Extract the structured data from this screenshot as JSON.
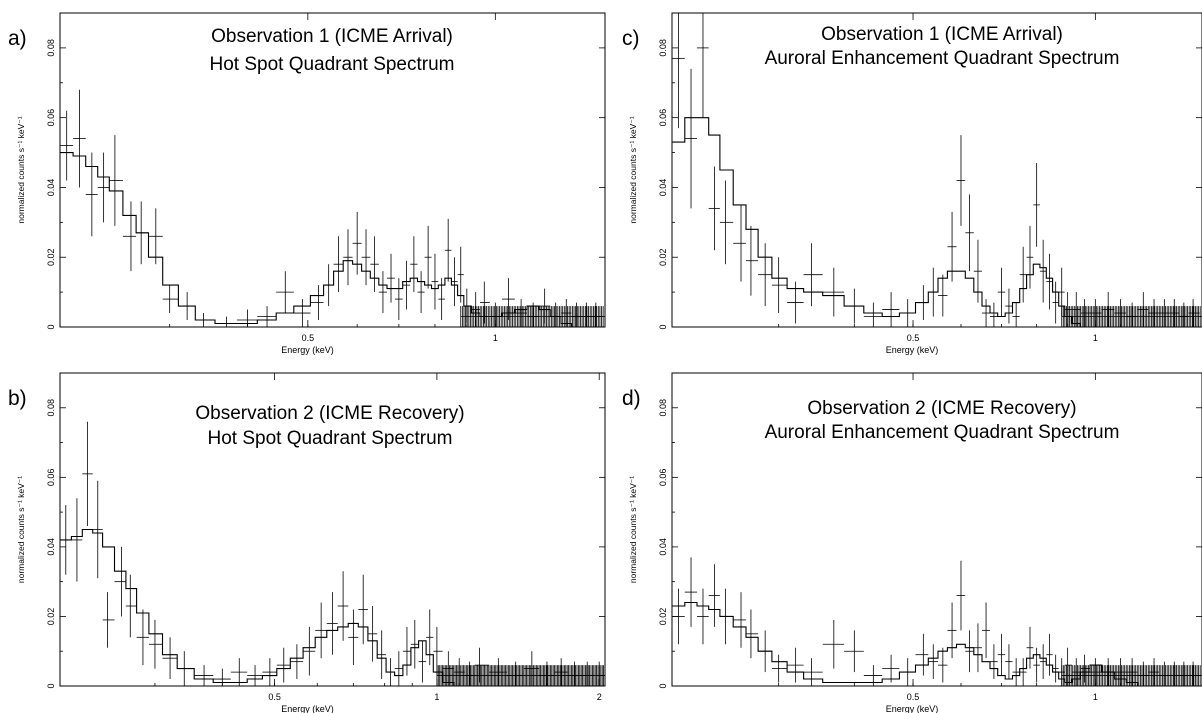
{
  "chart_data": [
    {
      "panel_label": "a)",
      "type": "line",
      "title": "Observation 1 (ICME Arrival)",
      "subtitle": "Hot Spot Quadrant Spectrum",
      "xlabel": "Energy (keV)",
      "ylabel": "normalized counts s⁻¹ keV⁻¹",
      "x_scale": "log",
      "xlim": [
        0.2,
        1.5
      ],
      "ylim": [
        0,
        0.09
      ],
      "x_ticks": [
        {
          "value": 0.5,
          "label": "0.5"
        },
        {
          "value": 1,
          "label": "1"
        }
      ],
      "y_ticks": [
        {
          "value": 0,
          "label": "0"
        },
        {
          "value": 0.02,
          "label": "0.02"
        },
        {
          "value": 0.04,
          "label": "0.04"
        },
        {
          "value": 0.06,
          "label": "0.06"
        },
        {
          "value": 0.08,
          "label": "0.08"
        }
      ],
      "data": {
        "x": [
          0.205,
          0.215,
          0.225,
          0.235,
          0.245,
          0.26,
          0.27,
          0.285,
          0.3,
          0.32,
          0.34,
          0.37,
          0.4,
          0.43,
          0.46,
          0.49,
          0.52,
          0.54,
          0.56,
          0.58,
          0.6,
          0.62,
          0.64,
          0.66,
          0.68,
          0.7,
          0.72,
          0.74,
          0.76,
          0.78,
          0.8,
          0.82,
          0.84,
          0.86,
          0.88,
          0.9,
          0.93,
          0.96,
          1.0,
          1.05,
          1.1,
          1.15,
          1.2,
          1.25,
          1.3,
          1.35,
          1.4,
          1.45
        ],
        "y": [
          0.052,
          0.054,
          0.038,
          0.04,
          0.042,
          0.026,
          0.027,
          0.026,
          0.008,
          0.006,
          0.002,
          0.001,
          0.002,
          0.003,
          0.01,
          0.004,
          0.007,
          0.012,
          0.018,
          0.02,
          0.024,
          0.02,
          0.018,
          0.01,
          0.014,
          0.008,
          0.012,
          0.018,
          0.01,
          0.02,
          0.013,
          0.008,
          0.022,
          0.013,
          0.015,
          0.006,
          0.005,
          0.007,
          0.003,
          0.008,
          0.004,
          0.003,
          0.006,
          0.003,
          0.004,
          0.003,
          0.003,
          0.003
        ],
        "yerr": [
          0.01,
          0.014,
          0.012,
          0.01,
          0.013,
          0.01,
          0.009,
          0.008,
          0.004,
          0.004,
          0.002,
          0.002,
          0.003,
          0.003,
          0.006,
          0.004,
          0.005,
          0.006,
          0.008,
          0.008,
          0.009,
          0.008,
          0.008,
          0.006,
          0.007,
          0.006,
          0.007,
          0.008,
          0.006,
          0.009,
          0.008,
          0.006,
          0.009,
          0.007,
          0.008,
          0.005,
          0.005,
          0.006,
          0.004,
          0.006,
          0.004,
          0.004,
          0.005,
          0.004,
          0.004,
          0.004,
          0.004,
          0.004
        ],
        "model": [
          0.05,
          0.049,
          0.046,
          0.043,
          0.039,
          0.032,
          0.027,
          0.02,
          0.012,
          0.006,
          0.002,
          0.001,
          0.001,
          0.002,
          0.004,
          0.006,
          0.009,
          0.012,
          0.016,
          0.019,
          0.018,
          0.016,
          0.014,
          0.012,
          0.011,
          0.011,
          0.013,
          0.014,
          0.013,
          0.012,
          0.011,
          0.012,
          0.014,
          0.012,
          0.009,
          0.006,
          0.004,
          0.003,
          0.003,
          0.004,
          0.005,
          0.006,
          0.005,
          0.003,
          0.001,
          0.0,
          0.0,
          0.0
        ]
      }
    },
    {
      "panel_label": "c)",
      "type": "line",
      "title": "Observation 1 (ICME Arrival)",
      "subtitle": "Auroral Enhancement Quadrant Spectrum",
      "xlabel": "Energy (keV)",
      "ylabel": "normalized counts s⁻¹ keV⁻¹",
      "x_scale": "log",
      "xlim": [
        0.2,
        1.5
      ],
      "ylim": [
        0,
        0.09
      ],
      "x_ticks": [
        {
          "value": 0.5,
          "label": "0.5"
        },
        {
          "value": 1,
          "label": "1"
        }
      ],
      "y_ticks": [
        {
          "value": 0,
          "label": "0"
        },
        {
          "value": 0.02,
          "label": "0.02"
        },
        {
          "value": 0.04,
          "label": "0.04"
        },
        {
          "value": 0.06,
          "label": "0.06"
        },
        {
          "value": 0.08,
          "label": "0.08"
        }
      ],
      "data": {
        "x": [
          0.205,
          0.215,
          0.225,
          0.235,
          0.245,
          0.26,
          0.27,
          0.285,
          0.3,
          0.32,
          0.34,
          0.37,
          0.4,
          0.43,
          0.46,
          0.49,
          0.52,
          0.54,
          0.56,
          0.58,
          0.6,
          0.62,
          0.64,
          0.66,
          0.68,
          0.7,
          0.72,
          0.74,
          0.76,
          0.78,
          0.8,
          0.82,
          0.84,
          0.86,
          0.88,
          0.9,
          0.93,
          0.96,
          1.0,
          1.05,
          1.1,
          1.15,
          1.2,
          1.25,
          1.3,
          1.35,
          1.4,
          1.45
        ],
        "y": [
          0.077,
          0.054,
          0.08,
          0.034,
          0.03,
          0.024,
          0.019,
          0.015,
          0.012,
          0.007,
          0.015,
          0.01,
          0.006,
          0.003,
          0.005,
          0.004,
          0.007,
          0.01,
          0.009,
          0.023,
          0.042,
          0.027,
          0.016,
          0.004,
          0.003,
          0.01,
          0.006,
          0.003,
          0.015,
          0.02,
          0.035,
          0.016,
          0.013,
          0.007,
          0.01,
          0.005,
          0.005,
          0.004,
          0.004,
          0.005,
          0.004,
          0.003,
          0.005,
          0.004,
          0.004,
          0.004,
          0.003,
          0.004
        ],
        "yerr": [
          0.02,
          0.02,
          0.02,
          0.012,
          0.012,
          0.011,
          0.01,
          0.009,
          0.008,
          0.006,
          0.009,
          0.007,
          0.005,
          0.004,
          0.005,
          0.004,
          0.005,
          0.007,
          0.006,
          0.01,
          0.013,
          0.011,
          0.009,
          0.004,
          0.004,
          0.007,
          0.005,
          0.004,
          0.008,
          0.009,
          0.012,
          0.009,
          0.008,
          0.006,
          0.007,
          0.005,
          0.005,
          0.004,
          0.004,
          0.005,
          0.004,
          0.004,
          0.005,
          0.004,
          0.004,
          0.004,
          0.004,
          0.004
        ],
        "model": [
          0.053,
          0.06,
          0.06,
          0.055,
          0.045,
          0.035,
          0.028,
          0.02,
          0.014,
          0.011,
          0.01,
          0.009,
          0.006,
          0.004,
          0.003,
          0.004,
          0.007,
          0.01,
          0.014,
          0.016,
          0.016,
          0.014,
          0.01,
          0.006,
          0.004,
          0.003,
          0.004,
          0.007,
          0.011,
          0.015,
          0.018,
          0.017,
          0.014,
          0.01,
          0.006,
          0.003,
          0.001,
          0.0,
          0.0,
          0.0,
          0.0,
          0.0,
          0.0,
          0.0,
          0.0,
          0.0,
          0.0,
          0.0
        ]
      }
    },
    {
      "panel_label": "b)",
      "type": "line",
      "title": "Observation 2 (ICME Recovery)",
      "subtitle": "Hot Spot Quadrant Spectrum",
      "xlabel": "Energy (keV)",
      "ylabel": "normalized counts s⁻¹ keV⁻¹",
      "x_scale": "log",
      "xlim": [
        0.2,
        2.05
      ],
      "ylim": [
        0,
        0.09
      ],
      "x_ticks": [
        {
          "value": 0.5,
          "label": "0.5"
        },
        {
          "value": 1,
          "label": "1"
        },
        {
          "value": 2,
          "label": "2"
        }
      ],
      "y_ticks": [
        {
          "value": 0,
          "label": "0"
        },
        {
          "value": 0.02,
          "label": "0.02"
        },
        {
          "value": 0.04,
          "label": "0.04"
        },
        {
          "value": 0.06,
          "label": "0.06"
        },
        {
          "value": 0.08,
          "label": "0.08"
        }
      ],
      "data": {
        "x": [
          0.205,
          0.215,
          0.225,
          0.235,
          0.245,
          0.26,
          0.27,
          0.285,
          0.3,
          0.32,
          0.34,
          0.37,
          0.4,
          0.43,
          0.46,
          0.49,
          0.52,
          0.55,
          0.58,
          0.61,
          0.64,
          0.67,
          0.7,
          0.73,
          0.76,
          0.79,
          0.82,
          0.85,
          0.88,
          0.91,
          0.94,
          0.97,
          1.0,
          1.05,
          1.1,
          1.15,
          1.2,
          1.3,
          1.4,
          1.5,
          1.6,
          1.7,
          1.8,
          1.9,
          2.0
        ],
        "y": [
          0.042,
          0.042,
          0.061,
          0.045,
          0.019,
          0.03,
          0.023,
          0.014,
          0.012,
          0.008,
          0.005,
          0.003,
          0.002,
          0.004,
          0.003,
          0.004,
          0.006,
          0.007,
          0.01,
          0.016,
          0.018,
          0.023,
          0.014,
          0.022,
          0.015,
          0.009,
          0.004,
          0.005,
          0.01,
          0.012,
          0.007,
          0.014,
          0.01,
          0.005,
          0.004,
          0.003,
          0.006,
          0.004,
          0.003,
          0.005,
          0.003,
          0.004,
          0.003,
          0.003,
          0.003
        ],
        "yerr": [
          0.01,
          0.012,
          0.015,
          0.014,
          0.008,
          0.01,
          0.009,
          0.008,
          0.007,
          0.006,
          0.005,
          0.003,
          0.003,
          0.004,
          0.003,
          0.004,
          0.005,
          0.005,
          0.007,
          0.008,
          0.009,
          0.01,
          0.008,
          0.01,
          0.008,
          0.007,
          0.004,
          0.005,
          0.007,
          0.007,
          0.006,
          0.008,
          0.007,
          0.005,
          0.004,
          0.004,
          0.005,
          0.004,
          0.004,
          0.005,
          0.004,
          0.004,
          0.004,
          0.004,
          0.004
        ],
        "model": [
          0.042,
          0.043,
          0.045,
          0.044,
          0.04,
          0.033,
          0.028,
          0.021,
          0.015,
          0.009,
          0.005,
          0.002,
          0.001,
          0.001,
          0.002,
          0.003,
          0.005,
          0.008,
          0.011,
          0.014,
          0.016,
          0.017,
          0.018,
          0.017,
          0.013,
          0.008,
          0.004,
          0.003,
          0.006,
          0.011,
          0.013,
          0.009,
          0.004,
          0.001,
          0.0,
          0.0,
          0.0,
          0.0,
          0.0,
          0.0,
          0.0,
          0.0,
          0.0,
          0.0,
          0.0
        ]
      }
    },
    {
      "panel_label": "d)",
      "type": "line",
      "title": "Observation 2 (ICME Recovery)",
      "subtitle": "Auroral Enhancement Quadrant Spectrum",
      "xlabel": "Energy (keV)",
      "ylabel": "normalized counts s⁻¹ keV⁻¹",
      "x_scale": "log",
      "xlim": [
        0.2,
        1.5
      ],
      "ylim": [
        0,
        0.09
      ],
      "x_ticks": [
        {
          "value": 0.5,
          "label": "0.5"
        },
        {
          "value": 1,
          "label": "1"
        }
      ],
      "y_ticks": [
        {
          "value": 0,
          "label": "0"
        },
        {
          "value": 0.02,
          "label": "0.02"
        },
        {
          "value": 0.04,
          "label": "0.04"
        },
        {
          "value": 0.06,
          "label": "0.06"
        },
        {
          "value": 0.08,
          "label": "0.08"
        }
      ],
      "data": {
        "x": [
          0.205,
          0.215,
          0.225,
          0.235,
          0.245,
          0.26,
          0.27,
          0.285,
          0.3,
          0.32,
          0.34,
          0.37,
          0.4,
          0.43,
          0.46,
          0.49,
          0.52,
          0.54,
          0.56,
          0.58,
          0.6,
          0.62,
          0.64,
          0.66,
          0.68,
          0.7,
          0.72,
          0.74,
          0.76,
          0.78,
          0.8,
          0.82,
          0.84,
          0.86,
          0.88,
          0.9,
          0.93,
          0.96,
          1.0,
          1.05,
          1.1,
          1.15,
          1.2,
          1.25,
          1.3,
          1.35,
          1.4,
          1.45
        ],
        "y": [
          0.02,
          0.027,
          0.02,
          0.026,
          0.02,
          0.019,
          0.015,
          0.01,
          0.005,
          0.006,
          0.004,
          0.012,
          0.01,
          0.003,
          0.005,
          0.004,
          0.009,
          0.007,
          0.006,
          0.016,
          0.026,
          0.01,
          0.011,
          0.016,
          0.007,
          0.009,
          0.007,
          0.004,
          0.004,
          0.011,
          0.006,
          0.007,
          0.009,
          0.005,
          0.004,
          0.006,
          0.004,
          0.005,
          0.004,
          0.004,
          0.004,
          0.004,
          0.003,
          0.004,
          0.003,
          0.003,
          0.003,
          0.003
        ],
        "yerr": [
          0.008,
          0.01,
          0.008,
          0.009,
          0.008,
          0.008,
          0.007,
          0.006,
          0.004,
          0.005,
          0.004,
          0.007,
          0.006,
          0.003,
          0.004,
          0.004,
          0.006,
          0.005,
          0.005,
          0.008,
          0.01,
          0.006,
          0.007,
          0.008,
          0.005,
          0.006,
          0.005,
          0.004,
          0.004,
          0.006,
          0.005,
          0.005,
          0.006,
          0.004,
          0.004,
          0.005,
          0.004,
          0.004,
          0.004,
          0.004,
          0.004,
          0.004,
          0.004,
          0.004,
          0.004,
          0.004,
          0.004,
          0.004
        ],
        "model": [
          0.023,
          0.024,
          0.023,
          0.022,
          0.02,
          0.017,
          0.014,
          0.01,
          0.007,
          0.004,
          0.002,
          0.001,
          0.001,
          0.001,
          0.002,
          0.004,
          0.006,
          0.008,
          0.01,
          0.011,
          0.012,
          0.011,
          0.009,
          0.007,
          0.005,
          0.003,
          0.002,
          0.003,
          0.005,
          0.008,
          0.009,
          0.008,
          0.006,
          0.004,
          0.002,
          0.001,
          0.002,
          0.004,
          0.006,
          0.004,
          0.002,
          0.001,
          0.0,
          0.0,
          0.0,
          0.0,
          0.0,
          0.0
        ]
      }
    }
  ]
}
